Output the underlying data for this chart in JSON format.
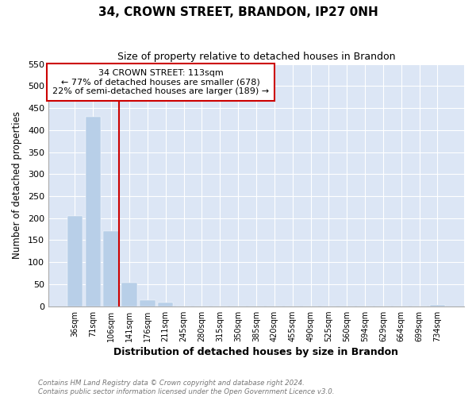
{
  "title": "34, CROWN STREET, BRANDON, IP27 0NH",
  "subtitle": "Size of property relative to detached houses in Brandon",
  "xlabel": "Distribution of detached houses by size in Brandon",
  "ylabel": "Number of detached properties",
  "bar_labels": [
    "36sqm",
    "71sqm",
    "106sqm",
    "141sqm",
    "176sqm",
    "211sqm",
    "245sqm",
    "280sqm",
    "315sqm",
    "350sqm",
    "385sqm",
    "420sqm",
    "455sqm",
    "490sqm",
    "525sqm",
    "560sqm",
    "594sqm",
    "629sqm",
    "664sqm",
    "699sqm",
    "734sqm"
  ],
  "bar_values": [
    205,
    430,
    170,
    53,
    13,
    9,
    0,
    0,
    0,
    0,
    0,
    0,
    0,
    0,
    0,
    0,
    0,
    0,
    0,
    0,
    3
  ],
  "bar_color": "#b8cfe8",
  "ylim": [
    0,
    550
  ],
  "yticks": [
    0,
    50,
    100,
    150,
    200,
    250,
    300,
    350,
    400,
    450,
    500,
    550
  ],
  "property_line_color": "#cc0000",
  "annotation_title": "34 CROWN STREET: 113sqm",
  "annotation_line1": "← 77% of detached houses are smaller (678)",
  "annotation_line2": "22% of semi-detached houses are larger (189) →",
  "annotation_box_color": "#ffffff",
  "annotation_box_edge": "#cc0000",
  "footer1": "Contains HM Land Registry data © Crown copyright and database right 2024.",
  "footer2": "Contains public sector information licensed under the Open Government Licence v3.0.",
  "bg_color": "#dce6f5",
  "grid_color": "#ffffff"
}
